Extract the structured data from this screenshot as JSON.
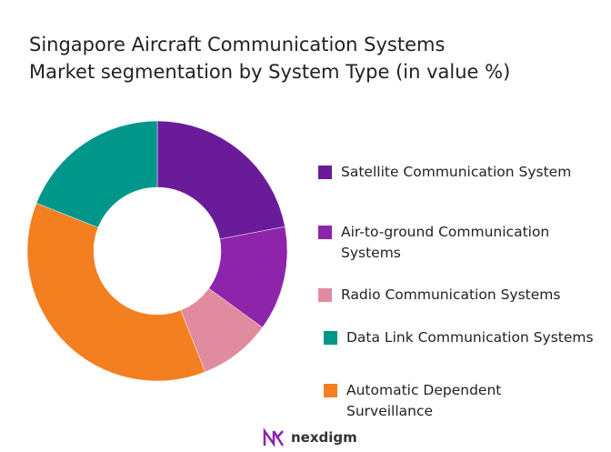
{
  "chart_data": {
    "type": "donut",
    "title_lines": [
      "Singapore Aircraft Communication Systems",
      "Market segmentation by System Type (in value %)"
    ],
    "categories": [
      "Satellite Communication System",
      "Air-to-ground Communication Systems",
      "Radio Communication Systems",
      "Data Link Communication Systems",
      "Automatic Dependent Surveillance"
    ],
    "values": [
      22,
      13,
      9,
      19,
      37
    ],
    "colors": [
      "#6a1b9a",
      "#8e24aa",
      "#e08ba0",
      "#00968a",
      "#f47f20"
    ],
    "legend": "right"
  },
  "logo": "nexdigm"
}
